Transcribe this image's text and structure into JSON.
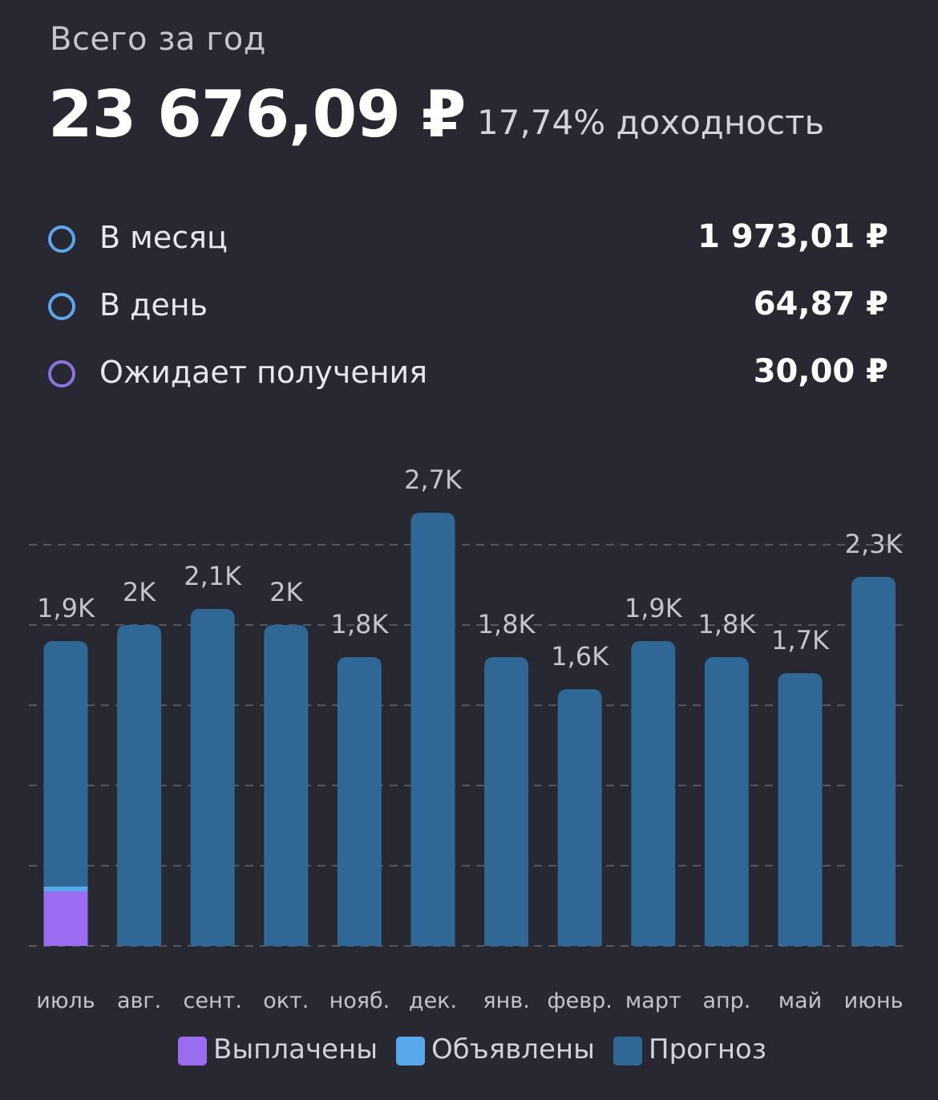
{
  "header": {
    "title": "Всего за год",
    "total": "23 676,09 ₽",
    "yield": "17,74% доходность"
  },
  "stats": [
    {
      "label": "В месяц",
      "value": "1 973,01 ₽",
      "color": "#5ea6ec"
    },
    {
      "label": "В день",
      "value": "64,87 ₽",
      "color": "#5ea6ec"
    },
    {
      "label": "Ожидает получения",
      "value": "30,00 ₽",
      "color": "#8b74e0"
    }
  ],
  "colors": {
    "background": "#272832",
    "paid": "#9a6cf0",
    "declared": "#5aa8ec",
    "forecast": "#2f6894",
    "grid": "#55575f"
  },
  "chart_data": {
    "type": "bar",
    "stacked": true,
    "categories": [
      "июль",
      "авг.",
      "сент.",
      "окт.",
      "нояб.",
      "дек.",
      "янв.",
      "февр.",
      "март",
      "апр.",
      "май",
      "июнь"
    ],
    "totals": [
      1900,
      2000,
      2100,
      2000,
      1800,
      2700,
      1800,
      1600,
      1900,
      1800,
      1700,
      2300
    ],
    "data_labels": [
      "1,9K",
      "2K",
      "2,1K",
      "2K",
      "1,8K",
      "2,7K",
      "1,8K",
      "1,6K",
      "1,9K",
      "1,8K",
      "1,7K",
      "2,3K"
    ],
    "series": [
      {
        "name": "Выплачены",
        "color": "#9a6cf0",
        "values": [
          340,
          0,
          0,
          0,
          0,
          0,
          0,
          0,
          0,
          0,
          0,
          0
        ]
      },
      {
        "name": "Объявлены",
        "color": "#5aa8ec",
        "values": [
          30,
          0,
          0,
          0,
          0,
          0,
          0,
          0,
          0,
          0,
          0,
          0
        ]
      },
      {
        "name": "Прогноз",
        "color": "#2f6894",
        "values": [
          1530,
          2000,
          2100,
          2000,
          1800,
          2700,
          1800,
          1600,
          1900,
          1800,
          1700,
          2300
        ]
      }
    ],
    "ylim": [
      0,
      2800
    ],
    "grid": true,
    "legend_position": "bottom"
  }
}
